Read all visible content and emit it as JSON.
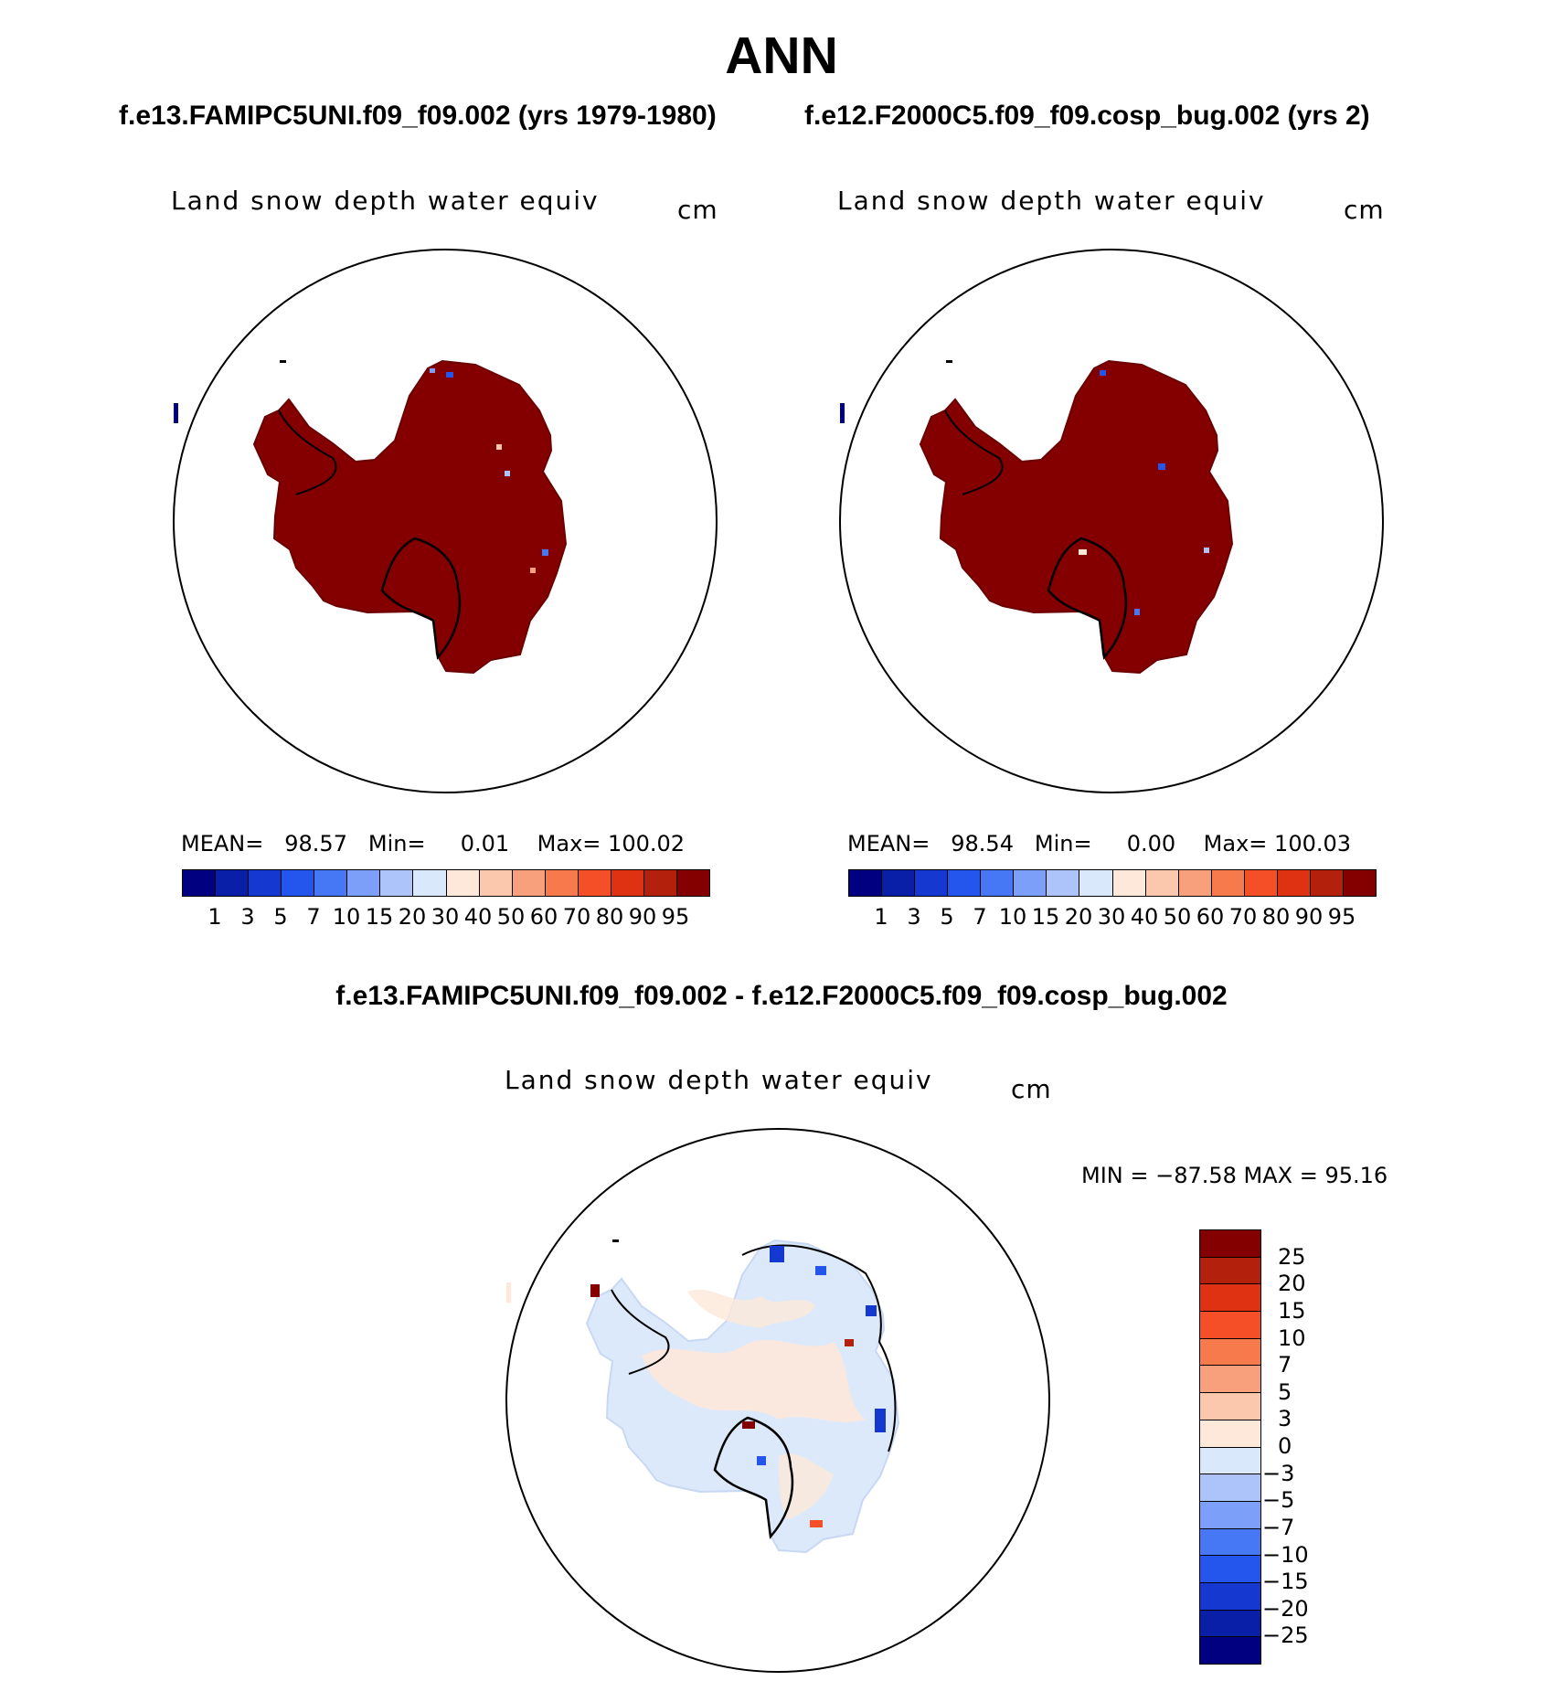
{
  "figure": {
    "title": "ANN",
    "case_a_title": "f.e13.FAMIPC5UNI.f09_f09.002 (yrs 1979-1980)",
    "case_b_title": "f.e12.F2000C5.f09_f09.cosp_bug.002 (yrs 2)",
    "diff_title": "f.e13.FAMIPC5UNI.f09_f09.002 - f.e12.F2000C5.f09_f09.cosp_bug.002"
  },
  "panels": [
    {
      "variable": "Land snow depth water equiv",
      "units": "cm",
      "stats": {
        "mean_label": "MEAN=",
        "mean": "98.57",
        "min_label": "Min=",
        "min": "0.01",
        "max_label": "Max=",
        "max": "100.02"
      }
    },
    {
      "variable": "Land snow depth water equiv",
      "units": "cm",
      "stats": {
        "mean_label": "MEAN=",
        "mean": "98.54",
        "min_label": "Min=",
        "min": "0.00",
        "max_label": "Max=",
        "max": "100.03"
      }
    }
  ],
  "diff_panel": {
    "variable": "Land snow depth water equiv",
    "units": "cm",
    "range_text": "MIN = −87.58 MAX =   95.16"
  },
  "abs_colorbar": {
    "labels": [
      "1",
      "3",
      "5",
      "7",
      "10",
      "15",
      "20",
      "30",
      "40",
      "50",
      "60",
      "70",
      "80",
      "90",
      "95"
    ],
    "colors": [
      "#000080",
      "#0a1fa8",
      "#1538d0",
      "#2456ee",
      "#4677f5",
      "#7c9ff9",
      "#adc4fb",
      "#d9e8fb",
      "#fde8da",
      "#fbc8ae",
      "#f8a07c",
      "#f67a4c",
      "#f44f26",
      "#df3213",
      "#b3200c",
      "#840000"
    ]
  },
  "diff_colorbar": {
    "labels": [
      "25",
      "20",
      "15",
      "10",
      "7",
      "5",
      "3",
      "0",
      "−3",
      "−5",
      "−7",
      "−10",
      "−15",
      "−20",
      "−25"
    ],
    "colors": [
      "#840000",
      "#b3200c",
      "#df3213",
      "#f44f26",
      "#f67a4c",
      "#f8a07c",
      "#fbc8ae",
      "#fde8da",
      "#d9e8fb",
      "#adc4fb",
      "#7c9ff9",
      "#4677f5",
      "#2456ee",
      "#1538d0",
      "#0a1fa8",
      "#000080"
    ]
  }
}
